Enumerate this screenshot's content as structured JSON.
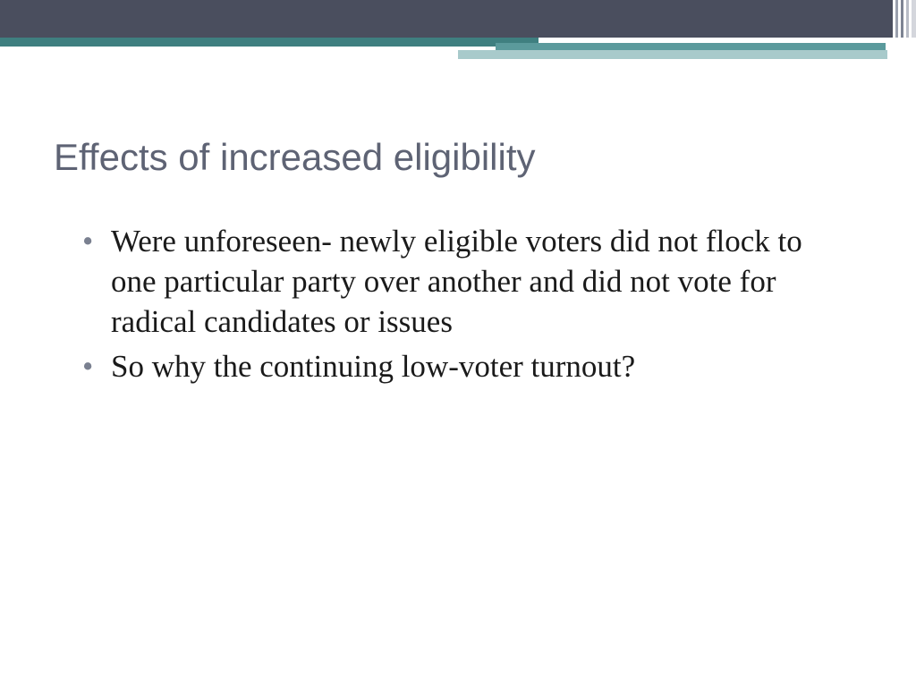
{
  "slide": {
    "title": "Effects of increased eligibility",
    "bullets": [
      "Were unforeseen- newly eligible voters did not flock to one particular party over another and did not vote for radical candidates or issues",
      "So why the continuing low-voter turnout?"
    ]
  },
  "theme": {
    "top_band_color": "#4a4e5e",
    "stripe_dark": "#3f7f80",
    "stripe_mid": "#5b9a9c",
    "stripe_light": "#a8cacb",
    "title_color": "#5e6374",
    "bullet_marker_color": "#7a8090",
    "body_text_color": "#1a1a1a",
    "background": "#ffffff",
    "title_fontsize": 42,
    "body_fontsize": 35
  }
}
